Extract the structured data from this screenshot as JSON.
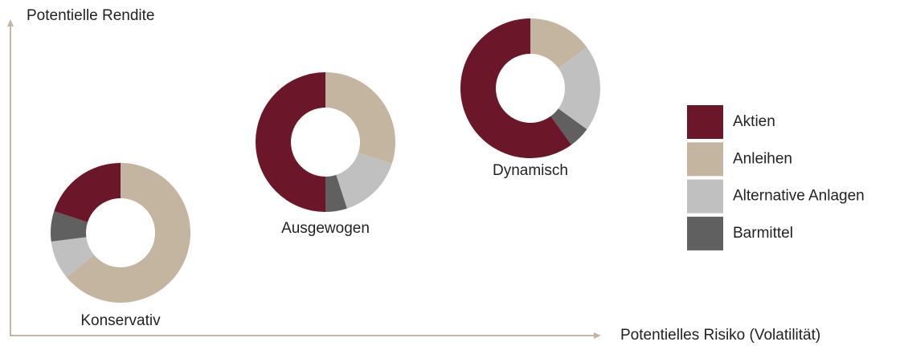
{
  "chart_data": {
    "type": "donut",
    "y_label": "Potentielle Rendite",
    "x_label": "Potentielles Risiko (Volatilität)",
    "categories": [
      "Aktien",
      "Anleihen",
      "Alternative Anlagen",
      "Barmittel"
    ],
    "colors": [
      "#6b1629",
      "#c4b5a0",
      "#c0c0c0",
      "#606060"
    ],
    "start_category": 1,
    "series": [
      {
        "name": "Konservativ",
        "values": [
          20,
          64,
          9,
          7
        ]
      },
      {
        "name": "Ausgewogen",
        "values": [
          50,
          30,
          15,
          5
        ]
      },
      {
        "name": "Dynamisch",
        "values": [
          60,
          15,
          20,
          5
        ]
      }
    ]
  }
}
